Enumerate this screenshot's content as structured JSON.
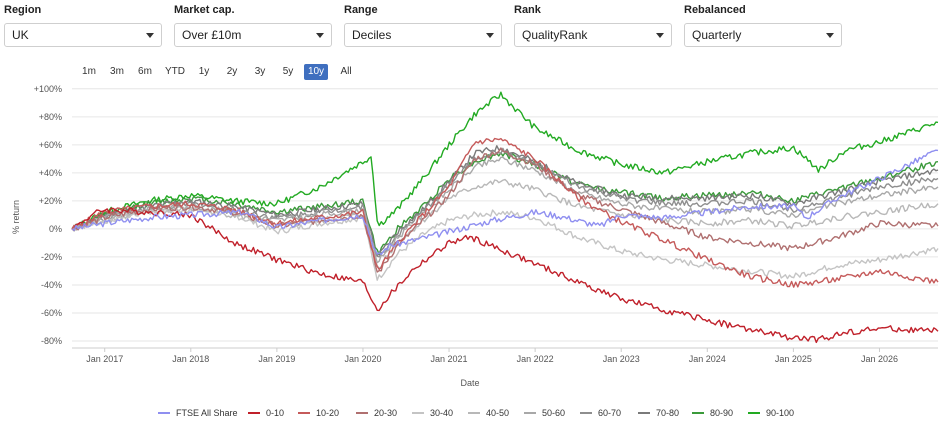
{
  "filters": [
    {
      "label": "Region",
      "value": "UK"
    },
    {
      "label": "Market cap.",
      "value": "Over £10m"
    },
    {
      "label": "Range",
      "value": "Deciles"
    },
    {
      "label": "Rank",
      "value": "QualityRank"
    },
    {
      "label": "Rebalanced",
      "value": "Quarterly"
    }
  ],
  "range_buttons": [
    "1m",
    "3m",
    "6m",
    "YTD",
    "1y",
    "2y",
    "3y",
    "5y",
    "10y",
    "All"
  ],
  "range_selected": "10y",
  "chart_data": {
    "type": "line",
    "xlabel": "Date",
    "ylabel": "% return",
    "y_ticks": [
      "+100%",
      "+80%",
      "+60%",
      "+40%",
      "+20%",
      "0%",
      "-20%",
      "-40%",
      "-60%",
      "-80%"
    ],
    "y_tick_values": [
      100,
      80,
      60,
      40,
      20,
      0,
      -20,
      -40,
      -60,
      -80
    ],
    "x_ticks": [
      "Jan 2017",
      "Jan 2018",
      "Jan 2019",
      "Jan 2020",
      "Jan 2021",
      "Jan 2022",
      "Jan 2023",
      "Jan 2024",
      "Jan 2025",
      "Jan 2026"
    ],
    "x_tick_values": [
      2017.0,
      2018.0,
      2019.0,
      2020.0,
      2021.0,
      2022.0,
      2023.0,
      2024.0,
      2025.0,
      2026.0
    ],
    "xlim": [
      2016.62,
      2026.68
    ],
    "ylim": [
      -85,
      102
    ],
    "grid": "horizontal",
    "legend_position": "bottom",
    "series": [
      {
        "name": "FTSE All Share",
        "color": "#8f8ff0",
        "x": [
          2016.62,
          2017.0,
          2017.5,
          2018.0,
          2018.6,
          2019.0,
          2019.5,
          2020.0,
          2020.17,
          2020.3,
          2020.6,
          2021.0,
          2021.5,
          2022.0,
          2022.3,
          2022.75,
          2023.0,
          2023.5,
          2024.0,
          2024.5,
          2025.0,
          2025.15,
          2025.5,
          2026.0,
          2026.68
        ],
        "values": [
          0,
          4,
          8,
          10,
          12,
          1,
          6,
          10,
          -20,
          -12,
          -8,
          -2,
          6,
          12,
          9,
          2,
          10,
          8,
          12,
          16,
          16,
          8,
          22,
          36,
          56
        ]
      },
      {
        "name": "0-10",
        "color": "#c0202a",
        "x": [
          2016.62,
          2016.85,
          2017.0,
          2017.5,
          2018.0,
          2018.5,
          2019.0,
          2019.5,
          2020.0,
          2020.17,
          2020.3,
          2020.6,
          2021.0,
          2021.25,
          2021.6,
          2022.0,
          2022.5,
          2023.0,
          2023.5,
          2024.0,
          2024.5,
          2025.0,
          2025.3,
          2025.6,
          2026.0,
          2026.68
        ],
        "values": [
          0,
          10,
          14,
          12,
          10,
          -10,
          -22,
          -32,
          -38,
          -58,
          -48,
          -28,
          -10,
          -6,
          -15,
          -25,
          -38,
          -50,
          -58,
          -65,
          -72,
          -78,
          -79,
          -74,
          -71,
          -73
        ]
      },
      {
        "name": "10-20",
        "color": "#c55a5a",
        "x": [
          2016.62,
          2017.0,
          2017.5,
          2018.0,
          2018.5,
          2019.0,
          2019.5,
          2020.0,
          2020.17,
          2020.4,
          2020.7,
          2021.0,
          2021.3,
          2021.6,
          2022.0,
          2022.5,
          2023.0,
          2023.5,
          2024.0,
          2024.5,
          2025.0,
          2025.5,
          2026.0,
          2026.68
        ],
        "values": [
          0,
          12,
          16,
          18,
          14,
          4,
          8,
          12,
          -30,
          -10,
          10,
          30,
          62,
          64,
          50,
          22,
          5,
          -8,
          -22,
          -34,
          -40,
          -36,
          -30,
          -38
        ]
      },
      {
        "name": "20-30",
        "color": "#b07070",
        "x": [
          2016.62,
          2017.0,
          2017.5,
          2018.0,
          2018.5,
          2019.0,
          2019.5,
          2020.0,
          2020.17,
          2020.4,
          2020.7,
          2021.0,
          2021.3,
          2021.6,
          2022.0,
          2022.5,
          2023.0,
          2023.5,
          2024.0,
          2024.5,
          2025.0,
          2025.5,
          2026.0,
          2026.68
        ],
        "values": [
          0,
          8,
          14,
          16,
          12,
          2,
          6,
          10,
          -32,
          -12,
          6,
          24,
          50,
          56,
          46,
          24,
          14,
          4,
          -6,
          -10,
          -14,
          -6,
          4,
          2
        ]
      },
      {
        "name": "30-40",
        "color": "#c4c4c4",
        "x": [
          2016.62,
          2017.0,
          2017.5,
          2018.0,
          2018.5,
          2019.0,
          2019.5,
          2020.0,
          2020.17,
          2020.4,
          2020.7,
          2021.0,
          2021.3,
          2021.6,
          2022.0,
          2022.5,
          2023.0,
          2023.5,
          2024.0,
          2024.5,
          2025.0,
          2025.5,
          2026.0,
          2026.68
        ],
        "values": [
          0,
          6,
          12,
          14,
          10,
          -2,
          4,
          8,
          -36,
          -18,
          -4,
          6,
          10,
          12,
          8,
          -6,
          -16,
          -22,
          -26,
          -30,
          -34,
          -26,
          -22,
          -14
        ]
      },
      {
        "name": "40-50",
        "color": "#b8b8b8",
        "x": [
          2016.62,
          2017.0,
          2017.5,
          2018.0,
          2018.5,
          2019.0,
          2019.5,
          2020.0,
          2020.17,
          2020.4,
          2020.7,
          2021.0,
          2021.3,
          2021.6,
          2022.0,
          2022.5,
          2023.0,
          2023.5,
          2024.0,
          2024.5,
          2025.0,
          2025.5,
          2026.0,
          2026.68
        ],
        "values": [
          0,
          6,
          12,
          14,
          10,
          2,
          6,
          10,
          -28,
          -10,
          6,
          22,
          30,
          34,
          28,
          16,
          10,
          6,
          4,
          6,
          2,
          8,
          12,
          18
        ]
      },
      {
        "name": "50-60",
        "color": "#a8a8a8",
        "x": [
          2016.62,
          2017.0,
          2017.5,
          2018.0,
          2018.5,
          2019.0,
          2019.5,
          2020.0,
          2020.17,
          2020.4,
          2020.7,
          2021.0,
          2021.3,
          2021.6,
          2022.0,
          2022.5,
          2023.0,
          2023.5,
          2024.0,
          2024.5,
          2025.0,
          2025.5,
          2026.0,
          2026.68
        ],
        "values": [
          0,
          8,
          14,
          16,
          12,
          6,
          10,
          14,
          -24,
          -6,
          10,
          28,
          44,
          50,
          42,
          26,
          18,
          14,
          12,
          14,
          10,
          18,
          24,
          30
        ]
      },
      {
        "name": "60-70",
        "color": "#8e8e8e",
        "x": [
          2016.62,
          2017.0,
          2017.5,
          2018.0,
          2018.5,
          2019.0,
          2019.5,
          2020.0,
          2020.17,
          2020.4,
          2020.7,
          2021.0,
          2021.3,
          2021.6,
          2022.0,
          2022.5,
          2023.0,
          2023.5,
          2024.0,
          2024.5,
          2025.0,
          2025.5,
          2026.0,
          2026.68
        ],
        "values": [
          0,
          8,
          14,
          18,
          14,
          8,
          12,
          16,
          -22,
          -4,
          12,
          32,
          50,
          56,
          46,
          30,
          22,
          18,
          18,
          20,
          14,
          22,
          30,
          36
        ]
      },
      {
        "name": "70-80",
        "color": "#7a7a7a",
        "x": [
          2016.62,
          2017.0,
          2017.5,
          2018.0,
          2018.5,
          2019.0,
          2019.5,
          2020.0,
          2020.17,
          2020.4,
          2020.7,
          2021.0,
          2021.3,
          2021.6,
          2022.0,
          2022.5,
          2023.0,
          2023.5,
          2024.0,
          2024.5,
          2025.0,
          2025.5,
          2026.0,
          2026.68
        ],
        "values": [
          0,
          10,
          16,
          20,
          16,
          10,
          14,
          18,
          -20,
          -2,
          14,
          34,
          54,
          58,
          48,
          32,
          24,
          22,
          22,
          24,
          18,
          26,
          34,
          42
        ]
      },
      {
        "name": "80-90",
        "color": "#3a9a3a",
        "x": [
          2016.62,
          2017.0,
          2017.5,
          2018.0,
          2018.5,
          2019.0,
          2019.5,
          2020.0,
          2020.17,
          2020.4,
          2020.7,
          2021.0,
          2021.3,
          2021.6,
          2022.0,
          2022.5,
          2023.0,
          2023.5,
          2024.0,
          2024.5,
          2025.0,
          2025.5,
          2026.0,
          2026.68
        ],
        "values": [
          0,
          10,
          18,
          22,
          18,
          12,
          16,
          20,
          -18,
          0,
          16,
          36,
          48,
          54,
          46,
          32,
          26,
          22,
          24,
          26,
          20,
          28,
          36,
          48
        ]
      },
      {
        "name": "90-100",
        "color": "#22aa22",
        "x": [
          2016.62,
          2017.0,
          2017.5,
          2018.0,
          2018.5,
          2019.0,
          2019.5,
          2020.0,
          2020.1,
          2020.17,
          2020.4,
          2020.7,
          2021.0,
          2021.3,
          2021.6,
          2022.0,
          2022.5,
          2023.0,
          2023.5,
          2024.0,
          2024.5,
          2025.0,
          2025.3,
          2025.6,
          2026.0,
          2026.68
        ],
        "values": [
          0,
          12,
          20,
          24,
          20,
          18,
          30,
          48,
          52,
          2,
          14,
          36,
          60,
          82,
          96,
          72,
          56,
          46,
          40,
          48,
          54,
          58,
          42,
          56,
          62,
          76
        ]
      }
    ]
  }
}
